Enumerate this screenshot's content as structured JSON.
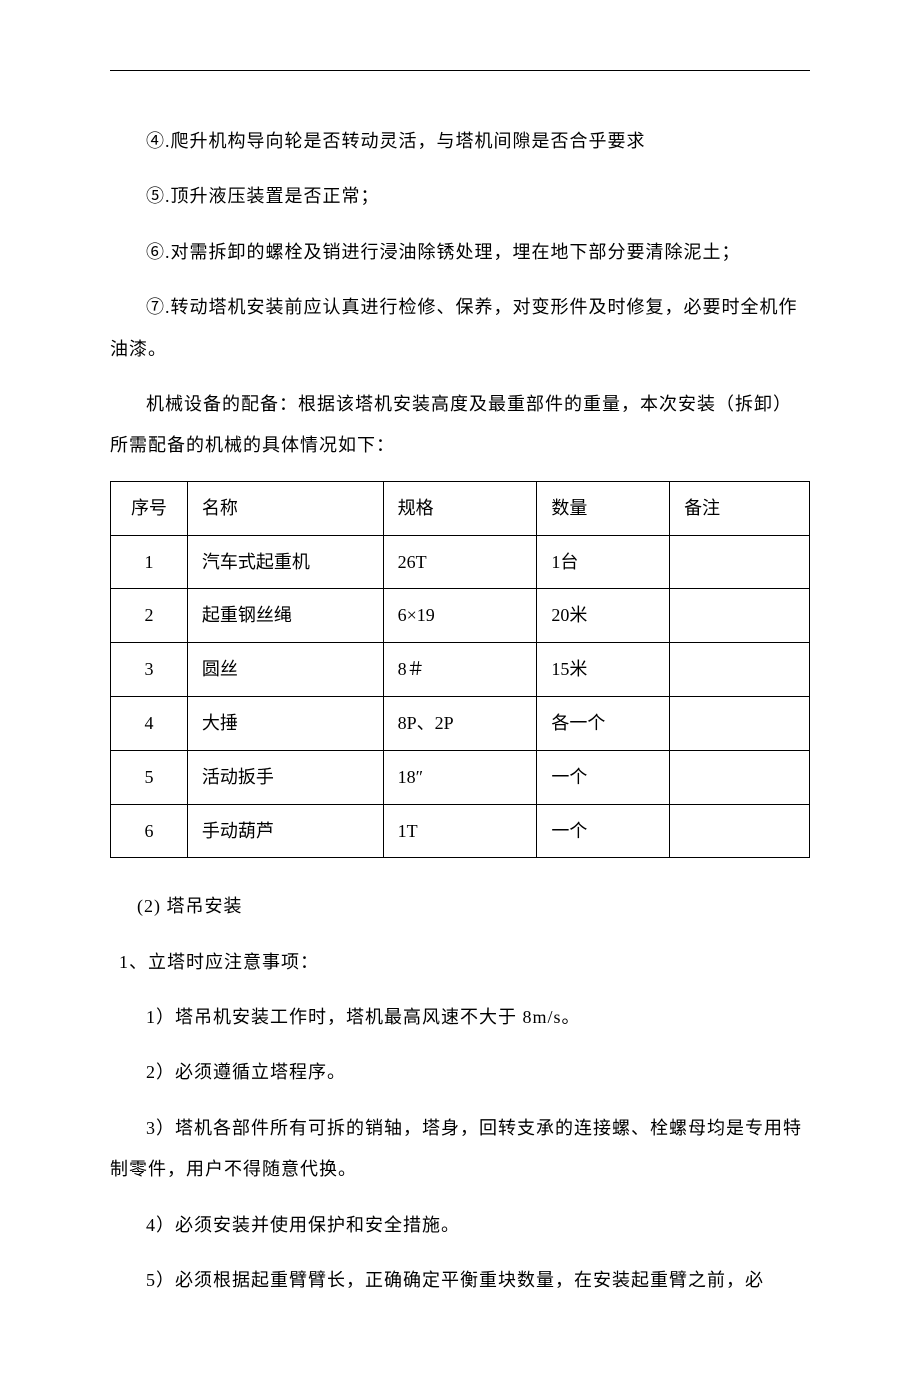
{
  "paras": {
    "p4": "④.爬升机构导向轮是否转动灵活，与塔机间隙是否合乎要求",
    "p5": "⑤.顶升液压装置是否正常；",
    "p6": "⑥.对需拆卸的螺栓及销进行浸油除锈处理，埋在地下部分要清除泥土；",
    "p7": "⑦.转动塔机安装前应认真进行检修、保养，对变形件及时修复，必要时全机作油漆。",
    "p_equip": "机械设备的配备：根据该塔机安装高度及最重部件的重量，本次安装（拆卸）所需配备的机械的具体情况如下：",
    "sec2_title": "(2) 塔吊安装",
    "sec2_sub1": "1、立塔时应注意事项：",
    "sec2_i1": "1）塔吊机安装工作时，塔机最高风速不大于 8m/s。",
    "sec2_i2": "2）必须遵循立塔程序。",
    "sec2_i3": "3）塔机各部件所有可拆的销轴，塔身，回转支承的连接螺、栓螺母均是专用特制零件，用户不得随意代换。",
    "sec2_i4": "4）必须安装并使用保护和安全措施。",
    "sec2_i5": "5）必须根据起重臂臂长，正确确定平衡重块数量，在安装起重臂之前，必"
  },
  "table": {
    "headers": {
      "seq": "序号",
      "name": "名称",
      "spec": "规格",
      "qty": "数量",
      "note": "备注"
    },
    "rows": [
      {
        "seq": "1",
        "name": "汽车式起重机",
        "spec": "26T",
        "qty": "1台",
        "note": ""
      },
      {
        "seq": "2",
        "name": "起重钢丝绳",
        "spec": "6×19",
        "qty": "20米",
        "note": ""
      },
      {
        "seq": "3",
        "name": "圆丝",
        "spec": "8＃",
        "qty": "15米",
        "note": ""
      },
      {
        "seq": "4",
        "name": "大捶",
        "spec": "8P、2P",
        "qty": "各一个",
        "note": ""
      },
      {
        "seq": "5",
        "name": "活动扳手",
        "spec": "18″",
        "qty": "一个",
        "note": ""
      },
      {
        "seq": "6",
        "name": "手动葫芦",
        "spec": "1T",
        "qty": "一个",
        "note": ""
      }
    ]
  }
}
